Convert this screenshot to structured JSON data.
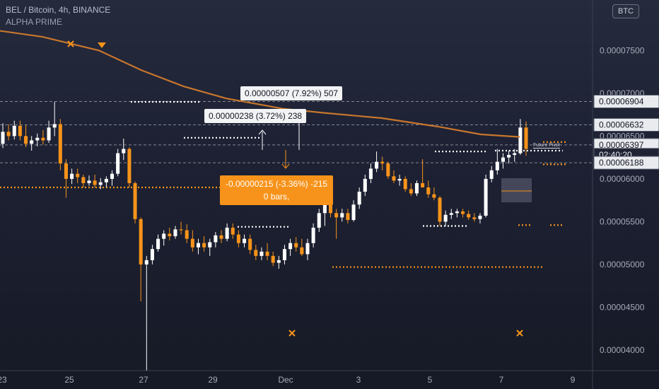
{
  "header": {
    "title": "BEL / Bitcoin, 4h, BINANCE",
    "subtitle": "ALPHA PRIME",
    "currency_badge": "BTC"
  },
  "colors": {
    "up": "#ffffff",
    "down": "#f7931a",
    "ma": "#c8762d",
    "pivot": "#f7931a",
    "grid_text": "#a7abb8"
  },
  "price_tags": [
    {
      "value": 6.904e-05,
      "label": "0.00006904"
    },
    {
      "value": 6.632e-05,
      "label": "0.00006632"
    },
    {
      "value": 6.397e-05,
      "label": "0.00006397"
    },
    {
      "value": 6.282e-05,
      "label": "02:40:20"
    },
    {
      "value": 6.188e-05,
      "label": "0.00006188"
    }
  ],
  "callouts": {
    "measure_top": "0.00000507 (7.92%) 507",
    "measure_mid": "0.00000238 (3.72%) 238",
    "measure_down_line1": "-0.00000215 (-3.36%) -215",
    "measure_down_line2": "0 bars,",
    "future_pivot": "Future Pivot"
  },
  "chart_data": {
    "type": "candlestick",
    "title": "BEL / Bitcoin, 4h, BINANCE",
    "y_axis": {
      "ticks": [
        4e-05,
        4.5e-05,
        5e-05,
        5.5e-05,
        6e-05,
        6.5e-05,
        7e-05,
        7.5e-05
      ],
      "tick_labels": [
        "0.00004000",
        "0.00004500",
        "0.00005000",
        "0.00005500",
        "0.00006000",
        "0.00006500",
        "0.00007000",
        "0.00007500"
      ],
      "range": [
        3.76e-05,
        8.09e-05
      ]
    },
    "x_axis": {
      "tick_labels": [
        "23",
        "25",
        "27",
        "29",
        "Dec",
        "3",
        "5",
        "7",
        "9"
      ]
    },
    "candles": [
      [
        6.41e-05,
        6.65e-05,
        6.36e-05,
        6.55e-05
      ],
      [
        6.55e-05,
        6.64e-05,
        6.45e-05,
        6.5e-05
      ],
      [
        6.5e-05,
        6.68e-05,
        6.46e-05,
        6.62e-05
      ],
      [
        6.62e-05,
        6.68e-05,
        6.45e-05,
        6.5e-05
      ],
      [
        6.5e-05,
        6.63e-05,
        6.37e-05,
        6.41e-05
      ],
      [
        6.41e-05,
        6.5e-05,
        6.33e-05,
        6.45e-05
      ],
      [
        6.45e-05,
        6.53e-05,
        6.38e-05,
        6.48e-05
      ],
      [
        6.48e-05,
        6.57e-05,
        6.4e-05,
        6.45e-05
      ],
      [
        6.45e-05,
        6.68e-05,
        6.42e-05,
        6.6e-05
      ],
      [
        6.6e-05,
        6.9e-05,
        6.5e-05,
        6.64e-05
      ],
      [
        6.64e-05,
        6.7e-05,
        6.1e-05,
        6.18e-05
      ],
      [
        6.18e-05,
        6.23e-05,
        5.78e-05,
        6e-05
      ],
      [
        6e-05,
        6.12e-05,
        5.94e-05,
        6.06e-05
      ],
      [
        6.06e-05,
        6.12e-05,
        5.95e-05,
        6.02e-05
      ],
      [
        6.02e-05,
        6.05e-05,
        5.9e-05,
        5.95e-05
      ],
      [
        5.95e-05,
        6.04e-05,
        5.92e-05,
        5.98e-05
      ],
      [
        5.98e-05,
        6.05e-05,
        5.9e-05,
        5.93e-05
      ],
      [
        5.93e-05,
        6.01e-05,
        5.88e-05,
        5.96e-05
      ],
      [
        5.96e-05,
        6.03e-05,
        5.9e-05,
        6e-05
      ],
      [
        6e-05,
        6.1e-05,
        5.92e-05,
        6.06e-05
      ],
      [
        6.06e-05,
        6.35e-05,
        6.03e-05,
        6.3e-05
      ],
      [
        6.3e-05,
        6.47e-05,
        6.22e-05,
        6.35e-05
      ],
      [
        6.35e-05,
        6.37e-05,
        5.9e-05,
        5.95e-05
      ],
      [
        5.95e-05,
        5.97e-05,
        5.48e-05,
        5.53e-05
      ],
      [
        5.53e-05,
        5.55e-05,
        4.57e-05,
        5e-05
      ],
      [
        5e-05,
        5.1e-05,
        3.76e-05,
        5.05e-05
      ],
      [
        5.05e-05,
        5.23e-05,
        5e-05,
        5.18e-05
      ],
      [
        5.18e-05,
        5.35e-05,
        5.15e-05,
        5.3e-05
      ],
      [
        5.3e-05,
        5.4e-05,
        5.22e-05,
        5.36e-05
      ],
      [
        5.36e-05,
        5.43e-05,
        5.28e-05,
        5.33e-05
      ],
      [
        5.33e-05,
        5.45e-05,
        5.3e-05,
        5.41e-05
      ],
      [
        5.41e-05,
        5.5e-05,
        5.35e-05,
        5.4e-05
      ],
      [
        5.4e-05,
        5.47e-05,
        5.25e-05,
        5.3e-05
      ],
      [
        5.3e-05,
        5.4e-05,
        5.15e-05,
        5.2e-05
      ],
      [
        5.2e-05,
        5.3e-05,
        5.12e-05,
        5.25e-05
      ],
      [
        5.25e-05,
        5.33e-05,
        5.15e-05,
        5.2e-05
      ],
      [
        5.2e-05,
        5.3e-05,
        5.1e-05,
        5.26e-05
      ],
      [
        5.26e-05,
        5.38e-05,
        5.2e-05,
        5.34e-05
      ],
      [
        5.34e-05,
        5.4e-05,
        5.25e-05,
        5.3e-05
      ],
      [
        5.3e-05,
        5.48e-05,
        5.27e-05,
        5.43e-05
      ],
      [
        5.43e-05,
        5.48e-05,
        5.3e-05,
        5.35e-05
      ],
      [
        5.35e-05,
        5.4e-05,
        5.2e-05,
        5.25e-05
      ],
      [
        5.25e-05,
        5.35e-05,
        5.2e-05,
        5.3e-05
      ],
      [
        5.3e-05,
        5.35e-05,
        5.12e-05,
        5.17e-05
      ],
      [
        5.17e-05,
        5.23e-05,
        5.05e-05,
        5.1e-05
      ],
      [
        5.1e-05,
        5.2e-05,
        5.05e-05,
        5.15e-05
      ],
      [
        5.15e-05,
        5.25e-05,
        5.05e-05,
        5.1e-05
      ],
      [
        5.1e-05,
        5.15e-05,
        4.98e-05,
        5.02e-05
      ],
      [
        5.02e-05,
        5.1e-05,
        4.95e-05,
        5.05e-05
      ],
      [
        5.05e-05,
        5.23e-05,
        5e-05,
        5.18e-05
      ],
      [
        5.18e-05,
        5.3e-05,
        5.1e-05,
        5.25e-05
      ],
      [
        5.25e-05,
        5.32e-05,
        5.15e-05,
        5.2e-05
      ],
      [
        5.2e-05,
        5.3e-05,
        5.1e-05,
        5.12e-05
      ],
      [
        5.12e-05,
        5.3e-05,
        5.05e-05,
        5.25e-05
      ],
      [
        5.25e-05,
        5.48e-05,
        5.2e-05,
        5.43e-05
      ],
      [
        5.43e-05,
        5.65e-05,
        5.38e-05,
        5.6e-05
      ],
      [
        5.6e-05,
        5.82e-05,
        5.45e-05,
        5.75e-05
      ],
      [
        5.75e-05,
        5.8e-05,
        5.55e-05,
        5.6e-05
      ],
      [
        5.6e-05,
        5.65e-05,
        5.3e-05,
        5.55e-05
      ],
      [
        5.55e-05,
        5.65e-05,
        5.5e-05,
        5.6e-05
      ],
      [
        5.6e-05,
        5.65e-05,
        5.48e-05,
        5.52e-05
      ],
      [
        5.52e-05,
        5.75e-05,
        5.5e-05,
        5.7e-05
      ],
      [
        5.7e-05,
        5.9e-05,
        5.65e-05,
        5.85e-05
      ],
      [
        5.85e-05,
        6.05e-05,
        5.8e-05,
        6e-05
      ],
      [
        6e-05,
        6.18e-05,
        5.95e-05,
        6.12e-05
      ],
      [
        6.12e-05,
        6.32e-05,
        6.08e-05,
        6.2e-05
      ],
      [
        6.2e-05,
        6.26e-05,
        6.1e-05,
        6.18e-05
      ],
      [
        6.18e-05,
        6.2e-05,
        6e-05,
        6.03e-05
      ],
      [
        6.03e-05,
        6.1e-05,
        5.95e-05,
        5.98e-05
      ],
      [
        5.98e-05,
        6.05e-05,
        5.92e-05,
        6e-05
      ],
      [
        6e-05,
        6.03e-05,
        5.85e-05,
        5.88e-05
      ],
      [
        5.88e-05,
        5.95e-05,
        5.8e-05,
        5.83e-05
      ],
      [
        5.83e-05,
        5.98e-05,
        5.8e-05,
        5.95e-05
      ],
      [
        5.95e-05,
        6.23e-05,
        5.9e-05,
        5.9e-05
      ],
      [
        5.9e-05,
        5.98e-05,
        5.78e-05,
        5.82e-05
      ],
      [
        5.82e-05,
        5.9e-05,
        5.75e-05,
        5.78e-05
      ],
      [
        5.78e-05,
        5.8e-05,
        5.45e-05,
        5.5e-05
      ],
      [
        5.5e-05,
        5.63e-05,
        5.45e-05,
        5.58e-05
      ],
      [
        5.58e-05,
        5.65e-05,
        5.53e-05,
        5.6e-05
      ],
      [
        5.6e-05,
        5.65e-05,
        5.55e-05,
        5.62e-05
      ],
      [
        5.62e-05,
        5.65e-05,
        5.55e-05,
        5.59e-05
      ],
      [
        5.59e-05,
        5.63e-05,
        5.52e-05,
        5.55e-05
      ],
      [
        5.55e-05,
        5.6e-05,
        5.5e-05,
        5.53e-05
      ],
      [
        5.53e-05,
        5.6e-05,
        5.48e-05,
        5.57e-05
      ],
      [
        5.57e-05,
        6.05e-05,
        5.55e-05,
        6e-05
      ],
      [
        6e-05,
        6.15e-05,
        5.96e-05,
        6.1e-05
      ],
      [
        6.1e-05,
        6.35e-05,
        6.05e-05,
        6.2e-05
      ],
      [
        6.2e-05,
        6.3e-05,
        6.12e-05,
        6.25e-05
      ],
      [
        6.25e-05,
        6.33e-05,
        6.18e-05,
        6.28e-05
      ],
      [
        6.28e-05,
        6.35e-05,
        6.2e-05,
        6.3e-05
      ],
      [
        6.3e-05,
        6.7e-05,
        6.28e-05,
        6.6e-05
      ],
      [
        6.6e-05,
        6.67e-05,
        6.27e-05,
        6.35e-05
      ]
    ],
    "moving_average": [
      {
        "x": 0,
        "y": 7.73e-05
      },
      {
        "x": 60,
        "y": 7.66e-05
      },
      {
        "x": 140,
        "y": 7.5e-05
      },
      {
        "x": 200,
        "y": 7.27e-05
      },
      {
        "x": 260,
        "y": 7.08e-05
      },
      {
        "x": 320,
        "y": 6.94e-05
      },
      {
        "x": 400,
        "y": 6.82e-05
      },
      {
        "x": 460,
        "y": 6.77e-05
      },
      {
        "x": 540,
        "y": 6.71e-05
      },
      {
        "x": 620,
        "y": 6.61e-05
      },
      {
        "x": 680,
        "y": 6.52e-05
      },
      {
        "x": 735,
        "y": 6.49e-05
      }
    ],
    "x_scale": {
      "x0": 0,
      "x1": 735
    }
  }
}
